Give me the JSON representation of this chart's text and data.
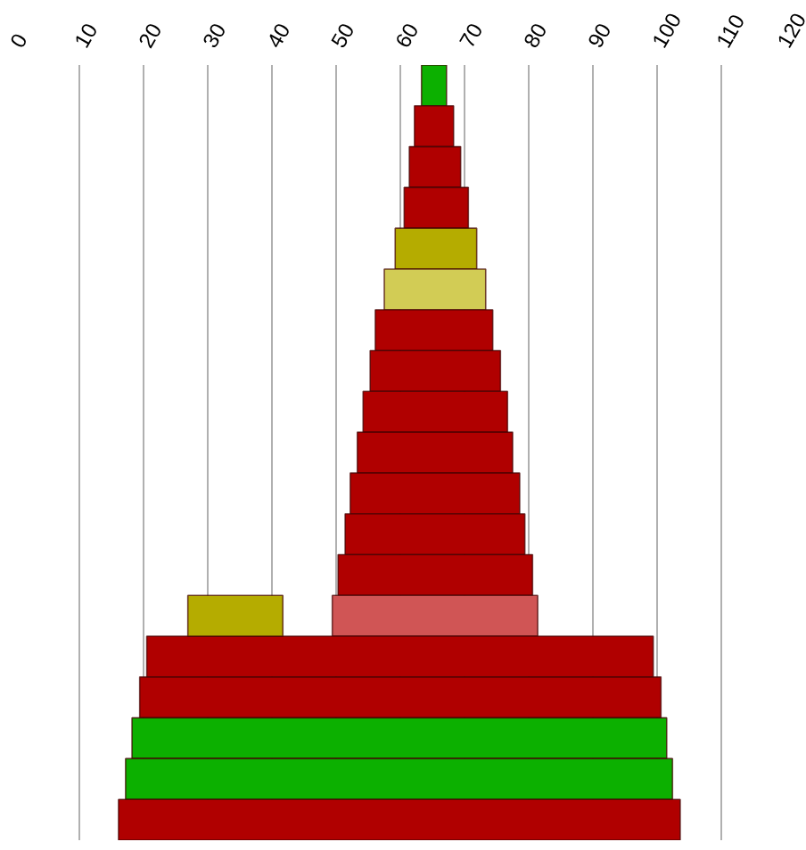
{
  "chart_data": {
    "type": "bar",
    "orientation": "horizontal",
    "tick_labels": "x",
    "grid": "x",
    "categories": [
      null,
      null,
      null,
      null,
      null,
      null,
      null,
      null,
      null,
      null,
      null,
      null,
      null,
      null,
      null,
      null,
      null,
      null,
      null
    ],
    "xlim": [
      0,
      120
    ],
    "xticks": [
      0,
      10,
      20,
      30,
      40,
      50,
      60,
      70,
      80,
      90,
      100,
      110,
      120
    ],
    "series": [
      {
        "values": [
          3.9,
          6.1,
          8.0,
          10.0,
          12.7,
          15.8,
          18.3,
          20.3,
          22.5,
          24.2,
          26.4,
          28.0,
          30.3,
          32.0,
          78.9,
          81.2,
          83.3,
          85.2,
          87.5
        ],
        "base": [
          63.3,
          62.2,
          61.4,
          60.6,
          59.2,
          57.5,
          56.1,
          55.3,
          54.2,
          53.3,
          52.2,
          51.4,
          50.3,
          49.4,
          20.5,
          19.4,
          18.2,
          17.2,
          16.1
        ],
        "colors": [
          "#0cb000",
          "#b00000",
          "#b00000",
          "#b00000",
          "#b5ac00",
          "#d2cc55",
          "#b00000",
          "#b00000",
          "#b00000",
          "#b00000",
          "#b00000",
          "#b00000",
          "#b00000",
          "#d05555",
          "#b00000",
          "#b00000",
          "#0cb000",
          "#0cb000",
          "#b00000"
        ]
      },
      {
        "values": [
          null,
          null,
          null,
          null,
          null,
          null,
          null,
          null,
          null,
          null,
          null,
          null,
          null,
          14.8,
          null,
          null,
          null,
          null,
          null
        ],
        "base": [
          null,
          null,
          null,
          null,
          null,
          null,
          null,
          null,
          null,
          null,
          null,
          null,
          null,
          26.9,
          null,
          null,
          null,
          null,
          null
        ],
        "colors": [
          null,
          null,
          null,
          null,
          null,
          null,
          null,
          null,
          null,
          null,
          null,
          null,
          null,
          "#b5ac00",
          null,
          null,
          null,
          null,
          null
        ]
      }
    ]
  }
}
